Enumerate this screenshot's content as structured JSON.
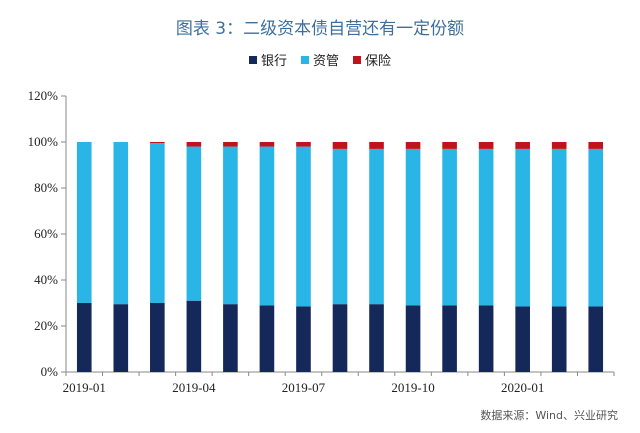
{
  "title": "图表 3：二级资本债自营还有一定份额",
  "source": "数据来源：Wind、兴业研究",
  "colors": {
    "bank": "#14285a",
    "asset_mgmt": "#29b6e6",
    "insurance": "#c0141c",
    "title": "#3d6f9e"
  },
  "chart_data": {
    "type": "bar",
    "stacked": true,
    "categories": [
      "2019-01",
      "2019-02",
      "2019-03",
      "2019-04",
      "2019-05",
      "2019-06",
      "2019-07",
      "2019-08",
      "2019-09",
      "2019-10",
      "2019-11",
      "2019-12",
      "2020-01",
      "2020-02",
      "2020-03"
    ],
    "x_tick_labels": [
      "2019-01",
      "2019-04",
      "2019-07",
      "2019-10",
      "2020-01"
    ],
    "series": [
      {
        "name": "银行",
        "color": "#14285a",
        "values": [
          30,
          29.5,
          30,
          31,
          29.5,
          29,
          28.5,
          29.5,
          29.5,
          29,
          29,
          29,
          28.5,
          28.5,
          28.5
        ]
      },
      {
        "name": "资管",
        "color": "#29b6e6",
        "values": [
          70,
          70.5,
          69.5,
          67,
          68.5,
          69,
          69.5,
          67.5,
          67.5,
          68,
          68,
          68,
          68.5,
          68.5,
          68.5
        ]
      },
      {
        "name": "保险",
        "color": "#c0141c",
        "values": [
          0,
          0,
          0.5,
          2,
          2,
          2,
          2,
          3,
          3,
          3,
          3,
          3,
          3,
          3,
          3
        ]
      }
    ],
    "ylim": [
      0,
      120
    ],
    "y_ticks": [
      0,
      20,
      40,
      60,
      80,
      100,
      120
    ],
    "y_tick_labels": [
      "0%",
      "20%",
      "40%",
      "60%",
      "80%",
      "100%",
      "120%"
    ],
    "grid": false,
    "legend_position": "top"
  }
}
